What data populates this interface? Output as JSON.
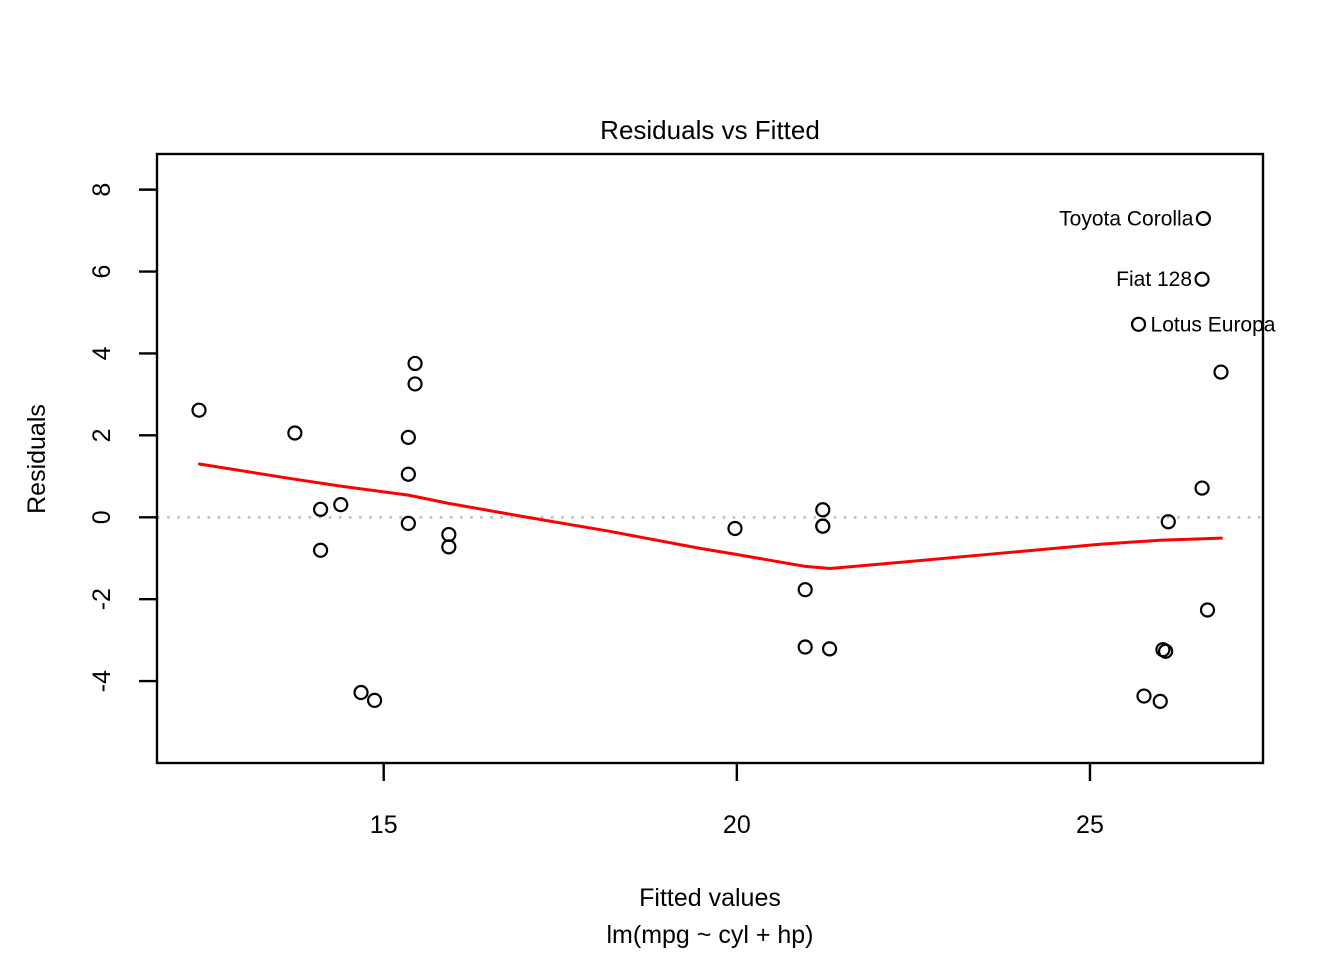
{
  "title": "Residuals vs Fitted",
  "axes": {
    "xlabel": "Fitted values",
    "model_label": "lm(mpg ~ cyl + hp)",
    "ylabel": "Residuals",
    "x_ticks": [
      15,
      20,
      25
    ],
    "y_ticks": [
      -4,
      -2,
      0,
      2,
      4,
      6,
      8
    ]
  },
  "colors": {
    "background": "#ffffff",
    "foreground": "#000000",
    "smoother": "#ff0000",
    "zero_line": "#bebebe"
  },
  "chart_data": {
    "type": "scatter",
    "title": "Residuals vs Fitted",
    "xlabel": "Fitted values",
    "xlabel_line2": "lm(mpg ~ cyl + hp)",
    "ylabel": "Residuals",
    "xlim": [
      11.79,
      27.45
    ],
    "ylim": [
      -6.0,
      8.87
    ],
    "x_ticks": [
      15,
      20,
      25
    ],
    "y_ticks": [
      -4,
      -2,
      0,
      2,
      4,
      6,
      8
    ],
    "grid": false,
    "legend": "none",
    "marker": "open-circle",
    "zero_line": {
      "y": 0,
      "style": "dotted",
      "color": "#bebebe"
    },
    "points": [
      {
        "x": 21.217,
        "y": -0.217
      },
      {
        "x": 21.217,
        "y": -0.217
      },
      {
        "x": 26.071,
        "y": -3.271
      },
      {
        "x": 21.217,
        "y": 0.183
      },
      {
        "x": 15.444,
        "y": 3.256
      },
      {
        "x": 21.313,
        "y": -3.213
      },
      {
        "x": 14.106,
        "y": 0.194
      },
      {
        "x": 26.664,
        "y": -2.264
      },
      {
        "x": 26.033,
        "y": -3.233
      },
      {
        "x": 20.968,
        "y": -1.768
      },
      {
        "x": 20.968,
        "y": -3.168
      },
      {
        "x": 15.349,
        "y": 1.051
      },
      {
        "x": 15.349,
        "y": 1.951
      },
      {
        "x": 15.349,
        "y": -0.149
      },
      {
        "x": 14.871,
        "y": -4.471
      },
      {
        "x": 14.679,
        "y": -4.279
      },
      {
        "x": 14.392,
        "y": 0.308
      },
      {
        "x": 26.587,
        "y": 5.813,
        "label": "Fiat 128",
        "label_side": "left"
      },
      {
        "x": 26.855,
        "y": 3.545
      },
      {
        "x": 26.606,
        "y": 7.294,
        "label": "Toyota Corolla",
        "label_side": "left"
      },
      {
        "x": 25.995,
        "y": -4.495
      },
      {
        "x": 15.922,
        "y": -0.422
      },
      {
        "x": 15.922,
        "y": -0.722
      },
      {
        "x": 14.106,
        "y": -0.806
      },
      {
        "x": 15.444,
        "y": 3.756
      },
      {
        "x": 26.587,
        "y": 0.713
      },
      {
        "x": 26.109,
        "y": -0.109
      },
      {
        "x": 25.688,
        "y": 4.712,
        "label": "Lotus Europa",
        "label_side": "right"
      },
      {
        "x": 13.742,
        "y": 2.058
      },
      {
        "x": 19.974,
        "y": -0.274
      },
      {
        "x": 12.385,
        "y": 2.615
      },
      {
        "x": 25.765,
        "y": -4.365
      }
    ],
    "smoother": {
      "name": "lowess",
      "color": "#ff0000",
      "points": [
        {
          "x": 12.39,
          "y": 1.3
        },
        {
          "x": 13.74,
          "y": 0.93
        },
        {
          "x": 14.39,
          "y": 0.76
        },
        {
          "x": 15.35,
          "y": 0.54
        },
        {
          "x": 15.92,
          "y": 0.34
        },
        {
          "x": 17.03,
          "y": 0.0
        },
        {
          "x": 18.19,
          "y": -0.34
        },
        {
          "x": 19.48,
          "y": -0.76
        },
        {
          "x": 19.97,
          "y": -0.9
        },
        {
          "x": 20.97,
          "y": -1.2
        },
        {
          "x": 21.32,
          "y": -1.25
        },
        {
          "x": 22.31,
          "y": -1.1
        },
        {
          "x": 23.72,
          "y": -0.88
        },
        {
          "x": 25.14,
          "y": -0.66
        },
        {
          "x": 25.99,
          "y": -0.56
        },
        {
          "x": 26.86,
          "y": -0.51
        }
      ]
    }
  }
}
